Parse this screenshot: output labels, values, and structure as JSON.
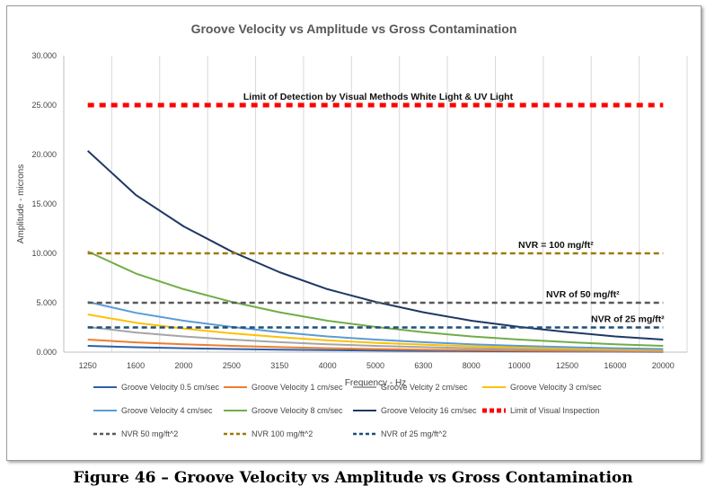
{
  "chart_data": {
    "type": "line",
    "title": "Groove Velocity vs Amplitude vs Gross Contamination",
    "xlabel": "Frequency - Hz",
    "ylabel": "Amplitude - microns",
    "ylim": [
      0,
      30
    ],
    "yticks": [
      "0.000",
      "5.000",
      "10.000",
      "15.000",
      "20.000",
      "25.000",
      "30.000"
    ],
    "categories": [
      "1250",
      "1600",
      "2000",
      "2500",
      "3150",
      "4000",
      "5000",
      "6300",
      "8000",
      "10000",
      "12500",
      "16000",
      "20000"
    ],
    "grid": "vertical",
    "legend_position": "bottom",
    "series": [
      {
        "name": "Groove Velocity 0.5 cm/sec",
        "color": "#2e5fa8",
        "dash": "solid",
        "values": [
          0.64,
          0.5,
          0.4,
          0.32,
          0.25,
          0.2,
          0.16,
          0.13,
          0.1,
          0.08,
          0.06,
          0.05,
          0.04
        ]
      },
      {
        "name": "Groove Velocity 1 cm/sec",
        "color": "#ed7d31",
        "dash": "solid",
        "values": [
          1.27,
          0.99,
          0.8,
          0.64,
          0.51,
          0.4,
          0.32,
          0.25,
          0.2,
          0.16,
          0.13,
          0.1,
          0.08
        ]
      },
      {
        "name": "Groove Velcity 2 cm/sec",
        "color": "#a5a5a5",
        "dash": "solid",
        "values": [
          2.55,
          1.99,
          1.59,
          1.27,
          1.01,
          0.8,
          0.64,
          0.51,
          0.4,
          0.32,
          0.25,
          0.2,
          0.16
        ]
      },
      {
        "name": "Groove Velocity 3 cm/sec",
        "color": "#ffc000",
        "dash": "solid",
        "values": [
          3.82,
          2.98,
          2.39,
          1.91,
          1.52,
          1.19,
          0.95,
          0.76,
          0.6,
          0.48,
          0.38,
          0.3,
          0.24
        ]
      },
      {
        "name": "Groove Velocity 4 cm/sec",
        "color": "#5b9bd5",
        "dash": "solid",
        "values": [
          5.09,
          3.98,
          3.18,
          2.55,
          2.02,
          1.59,
          1.27,
          1.01,
          0.8,
          0.64,
          0.51,
          0.4,
          0.32
        ]
      },
      {
        "name": "Groove Velocity 8 cm/sec",
        "color": "#70ad47",
        "dash": "solid",
        "values": [
          10.19,
          7.96,
          6.37,
          5.09,
          4.04,
          3.18,
          2.55,
          2.02,
          1.59,
          1.27,
          1.02,
          0.8,
          0.64
        ]
      },
      {
        "name": "Groove Velocity 16 cm/sec",
        "color": "#1f3864",
        "dash": "solid",
        "values": [
          20.37,
          15.92,
          12.73,
          10.19,
          8.09,
          6.37,
          5.09,
          4.04,
          3.18,
          2.55,
          2.04,
          1.59,
          1.27
        ]
      },
      {
        "name": "Limit of Visual Inspection",
        "color": "#ff0000",
        "dash": "heavy",
        "values": [
          25,
          25,
          25,
          25,
          25,
          25,
          25,
          25,
          25,
          25,
          25,
          25,
          25
        ]
      },
      {
        "name": "NVR 50 mg/ft^2",
        "color": "#595959",
        "dash": "dash",
        "values": [
          5,
          5,
          5,
          5,
          5,
          5,
          5,
          5,
          5,
          5,
          5,
          5,
          5
        ]
      },
      {
        "name": "NVR 100 mg/ft^2",
        "color": "#9c7a00",
        "dash": "dash",
        "values": [
          10,
          10,
          10,
          10,
          10,
          10,
          10,
          10,
          10,
          10,
          10,
          10,
          10
        ]
      },
      {
        "name": "NVR of 25 mg/ft^2",
        "color": "#1f4e79",
        "dash": "dash",
        "values": [
          2.5,
          2.5,
          2.5,
          2.5,
          2.5,
          2.5,
          2.5,
          2.5,
          2.5,
          2.5,
          2.5,
          2.5,
          2.5
        ]
      }
    ],
    "annotations": [
      {
        "text": "Limit of Detection  by Visual Methods White Light & UV Light",
        "y": 25
      },
      {
        "text": "NVR = 100 mg/ft²",
        "y": 10
      },
      {
        "text": "NVR of 50 mg/ft²",
        "y": 5
      },
      {
        "text": "NVR of 25 mg/ft²",
        "y": 2.5
      }
    ]
  },
  "caption": "Figure 46 – Groove Velocity vs Amplitude vs Gross Contamination"
}
